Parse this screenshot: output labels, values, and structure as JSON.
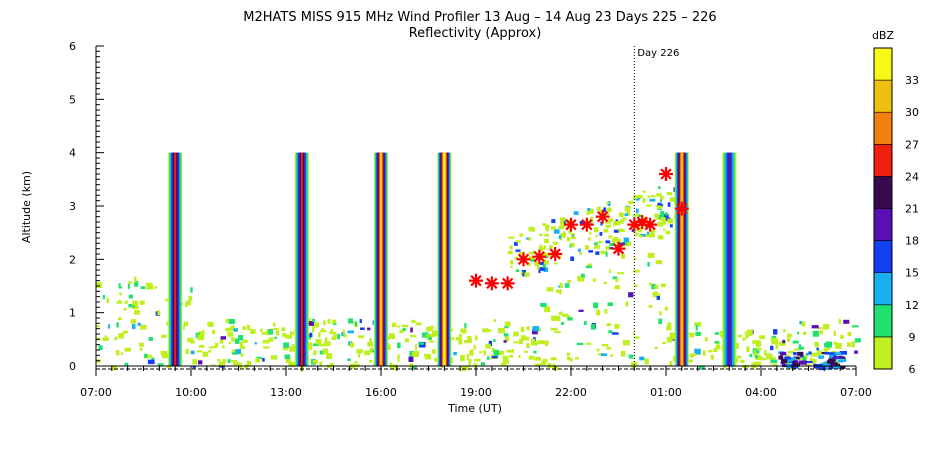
{
  "chart_data": {
    "type": "heatmap",
    "title": "M2HATS MISS 915 MHz Wind Profiler  13 Aug – 14 Aug 23 Days 225 – 226",
    "subtitle": "Reflectivity (Approx)",
    "xlabel": "Time (UT)",
    "ylabel": "Altitude (km)",
    "x_tick_labels": [
      "07:00",
      "10:00",
      "13:00",
      "16:00",
      "19:00",
      "22:00",
      "01:00",
      "04:00",
      "07:00"
    ],
    "x_ticks_hours": [
      0,
      3,
      6,
      9,
      12,
      15,
      18,
      21,
      24
    ],
    "xlim_hours": [
      0,
      24
    ],
    "y_tick_labels": [
      "0",
      "1",
      "2",
      "3",
      "4",
      "5",
      "6"
    ],
    "ylim": [
      0,
      6
    ],
    "day_marker": {
      "label": "Day 226",
      "hours": 17
    },
    "colorbar": {
      "label": "dBZ",
      "ticks": [
        "6",
        "9",
        "12",
        "15",
        "18",
        "21",
        "24",
        "27",
        "30",
        "33"
      ],
      "colors": [
        "#bfef1e",
        "#20e070",
        "#18b0f0",
        "#1040f0",
        "#5a10b0",
        "#3a0a50",
        "#f02010",
        "#f08010",
        "#f0c010",
        "#f8f818"
      ]
    },
    "series": [
      {
        "name": "",
        "marker": "asterisk",
        "color": "#ff0000",
        "x_hours": [
          12.0,
          12.5,
          13.0,
          13.5,
          14.0,
          14.5,
          15.0,
          15.5,
          16.0,
          16.5,
          17.0,
          17.25,
          17.5,
          18.0,
          18.5
        ],
        "y_km": [
          1.6,
          1.55,
          1.55,
          2.0,
          2.05,
          2.1,
          2.65,
          2.65,
          2.8,
          2.2,
          2.65,
          2.7,
          2.65,
          3.6,
          2.95
        ]
      }
    ],
    "reflectivity_features": [
      {
        "x_hours": 2.5,
        "top_km": 4.0,
        "dbz": 24
      },
      {
        "x_hours": 6.5,
        "top_km": 4.0,
        "dbz": 24
      },
      {
        "x_hours": 9.0,
        "top_km": 4.0,
        "dbz": 30
      },
      {
        "x_hours": 11.0,
        "top_km": 4.0,
        "dbz": 33
      },
      {
        "x_hours": 18.5,
        "top_km": 4.0,
        "dbz": 30
      },
      {
        "x_hours": 20.0,
        "top_km": 4.0,
        "dbz": 18
      }
    ]
  }
}
